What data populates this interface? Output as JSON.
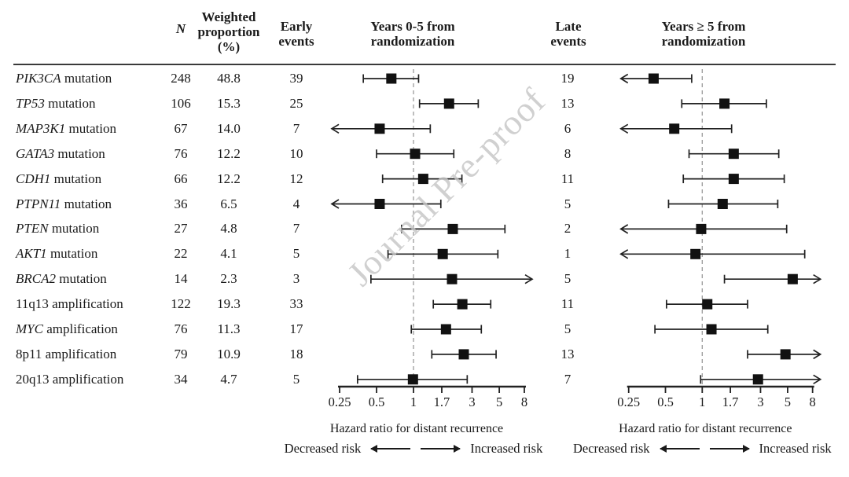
{
  "header": {
    "n": "N",
    "weighted": "Weighted\nproportion\n(%)",
    "early": "Early\nevents",
    "panel1": "Years 0-5 from\nrandomization",
    "late": "Late\nevents",
    "panel2": "Years ≥ 5 from\nrandomization"
  },
  "watermark": {
    "text": "Journal Pre-proof"
  },
  "legend": {
    "decreased": "Decreased risk",
    "increased": "Increased risk"
  },
  "colors": {
    "text": "#1a1a1a",
    "marker": "#111111",
    "line": "#222222",
    "reference_dash": "#9a9a9a",
    "watermark": "#c5c5c5",
    "divider": "#3a3a3a"
  },
  "chart_data": {
    "type": "forest",
    "x_scale": "log",
    "x_ticks": [
      "0.25",
      "0.5",
      "1",
      "1.7",
      "3",
      "5",
      "8"
    ],
    "x_tick_values": [
      0.25,
      0.5,
      1,
      1.7,
      3,
      5,
      8
    ],
    "xlim": [
      0.25,
      8
    ],
    "reference_line": 1,
    "xlabel": "Hazard ratio for distant recurrence",
    "panel_titles": [
      "Years 0-5 from randomization",
      "Years ≥ 5 from randomization"
    ],
    "rows": [
      {
        "gene": "PIK3CA",
        "gene_italic": true,
        "suffix": "mutation",
        "n": "248",
        "weighted_proportion": "48.8",
        "early_events": "39",
        "early": {
          "hr": 0.66,
          "lo": 0.39,
          "hi": 1.1,
          "lo_arrow": false,
          "hi_arrow": false
        },
        "late_events": "19",
        "late": {
          "hr": 0.4,
          "lo": null,
          "hi": 0.82,
          "lo_arrow": true,
          "hi_arrow": false
        }
      },
      {
        "gene": "TP53",
        "gene_italic": true,
        "suffix": "mutation",
        "n": "106",
        "weighted_proportion": "15.3",
        "early_events": "25",
        "early": {
          "hr": 1.95,
          "lo": 1.12,
          "hi": 3.37,
          "lo_arrow": false,
          "hi_arrow": false
        },
        "late_events": "13",
        "late": {
          "hr": 1.52,
          "lo": 0.68,
          "hi": 3.35,
          "lo_arrow": false,
          "hi_arrow": false
        }
      },
      {
        "gene": "MAP3K1",
        "gene_italic": true,
        "suffix": "mutation",
        "n": "67",
        "weighted_proportion": "14.0",
        "early_events": "7",
        "early": {
          "hr": 0.53,
          "lo": null,
          "hi": 1.37,
          "lo_arrow": true,
          "hi_arrow": false
        },
        "late_events": "6",
        "late": {
          "hr": 0.59,
          "lo": null,
          "hi": 1.74,
          "lo_arrow": true,
          "hi_arrow": false
        }
      },
      {
        "gene": "GATA3",
        "gene_italic": true,
        "suffix": "mutation",
        "n": "76",
        "weighted_proportion": "12.2",
        "early_events": "10",
        "early": {
          "hr": 1.03,
          "lo": 0.5,
          "hi": 2.13,
          "lo_arrow": false,
          "hi_arrow": false
        },
        "late_events": "8",
        "late": {
          "hr": 1.81,
          "lo": 0.78,
          "hi": 4.23,
          "lo_arrow": false,
          "hi_arrow": false
        }
      },
      {
        "gene": "CDH1",
        "gene_italic": true,
        "suffix": "mutation",
        "n": "66",
        "weighted_proportion": "12.2",
        "early_events": "12",
        "early": {
          "hr": 1.2,
          "lo": 0.56,
          "hi": 2.48,
          "lo_arrow": false,
          "hi_arrow": false
        },
        "late_events": "11",
        "late": {
          "hr": 1.81,
          "lo": 0.7,
          "hi": 4.69,
          "lo_arrow": false,
          "hi_arrow": false
        }
      },
      {
        "gene": "PTPN11",
        "gene_italic": true,
        "suffix": "mutation",
        "n": "36",
        "weighted_proportion": "6.5",
        "early_events": "4",
        "early": {
          "hr": 0.53,
          "lo": null,
          "hi": 1.67,
          "lo_arrow": true,
          "hi_arrow": false
        },
        "late_events": "5",
        "late": {
          "hr": 1.47,
          "lo": 0.53,
          "hi": 4.15,
          "lo_arrow": false,
          "hi_arrow": false
        }
      },
      {
        "gene": "PTEN",
        "gene_italic": true,
        "suffix": "mutation",
        "n": "27",
        "weighted_proportion": "4.8",
        "early_events": "7",
        "early": {
          "hr": 2.09,
          "lo": 0.8,
          "hi": 5.56,
          "lo_arrow": false,
          "hi_arrow": false
        },
        "late_events": "2",
        "late": {
          "hr": 0.98,
          "lo": null,
          "hi": 4.91,
          "lo_arrow": true,
          "hi_arrow": false
        }
      },
      {
        "gene": "AKT1",
        "gene_italic": true,
        "suffix": "mutation",
        "n": "22",
        "weighted_proportion": "4.1",
        "early_events": "5",
        "early": {
          "hr": 1.73,
          "lo": 0.62,
          "hi": 4.87,
          "lo_arrow": false,
          "hi_arrow": false
        },
        "late_events": "1",
        "late": {
          "hr": 0.88,
          "lo": null,
          "hi": 6.9,
          "lo_arrow": true,
          "hi_arrow": false
        }
      },
      {
        "gene": "BRCA2",
        "gene_italic": true,
        "suffix": "mutation",
        "n": "14",
        "weighted_proportion": "2.3",
        "early_events": "3",
        "early": {
          "hr": 2.06,
          "lo": 0.45,
          "hi": null,
          "lo_arrow": false,
          "hi_arrow": true
        },
        "late_events": "5",
        "late": {
          "hr": 5.5,
          "lo": 1.52,
          "hi": null,
          "lo_arrow": false,
          "hi_arrow": true
        }
      },
      {
        "gene": "11q13",
        "gene_italic": false,
        "suffix": "amplification",
        "n": "122",
        "weighted_proportion": "19.3",
        "early_events": "33",
        "early": {
          "hr": 2.5,
          "lo": 1.45,
          "hi": 4.26,
          "lo_arrow": false,
          "hi_arrow": false
        },
        "late_events": "11",
        "late": {
          "hr": 1.1,
          "lo": 0.51,
          "hi": 2.35,
          "lo_arrow": false,
          "hi_arrow": false
        }
      },
      {
        "gene": "MYC",
        "gene_italic": true,
        "suffix": "amplification",
        "n": "76",
        "weighted_proportion": "11.3",
        "early_events": "17",
        "early": {
          "hr": 1.84,
          "lo": 0.96,
          "hi": 3.57,
          "lo_arrow": false,
          "hi_arrow": false
        },
        "late_events": "5",
        "late": {
          "hr": 1.19,
          "lo": 0.41,
          "hi": 3.44,
          "lo_arrow": false,
          "hi_arrow": false
        }
      },
      {
        "gene": "8p11",
        "gene_italic": false,
        "suffix": "amplification",
        "n": "79",
        "weighted_proportion": "10.9",
        "early_events": "18",
        "early": {
          "hr": 2.57,
          "lo": 1.41,
          "hi": 4.71,
          "lo_arrow": false,
          "hi_arrow": false
        },
        "late_events": "13",
        "late": {
          "hr": 4.8,
          "lo": 2.35,
          "hi": null,
          "lo_arrow": false,
          "hi_arrow": true
        }
      },
      {
        "gene": "20q13",
        "gene_italic": false,
        "suffix": "amplification",
        "n": "34",
        "weighted_proportion": "4.7",
        "early_events": "5",
        "early": {
          "hr": 0.99,
          "lo": 0.35,
          "hi": 2.74,
          "lo_arrow": false,
          "hi_arrow": false
        },
        "late_events": "7",
        "late": {
          "hr": 2.86,
          "lo": 0.97,
          "hi": null,
          "lo_arrow": false,
          "hi_arrow": true
        }
      }
    ]
  }
}
